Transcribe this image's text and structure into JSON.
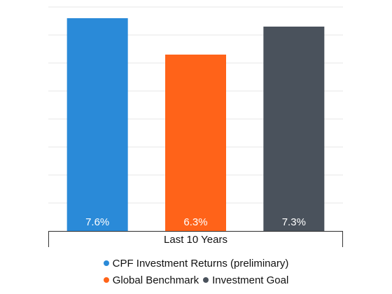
{
  "chart_data": {
    "type": "bar",
    "categories": [
      "Last 10 Years"
    ],
    "series": [
      {
        "name": "CPF Investment Returns (preliminary)",
        "values": [
          7.6
        ],
        "label": "7.6%",
        "color": "#2a8ad8"
      },
      {
        "name": "Global Benchmark",
        "values": [
          6.3
        ],
        "label": "6.3%",
        "color": "#ff6319"
      },
      {
        "name": "Investment Goal",
        "values": [
          7.3
        ],
        "label": "7.3%",
        "color": "#4a525c"
      }
    ],
    "ylim": [
      0,
      8
    ],
    "grid": true,
    "legend_position": "bottom",
    "legend_rows": [
      [
        0
      ],
      [
        1,
        2
      ]
    ]
  }
}
